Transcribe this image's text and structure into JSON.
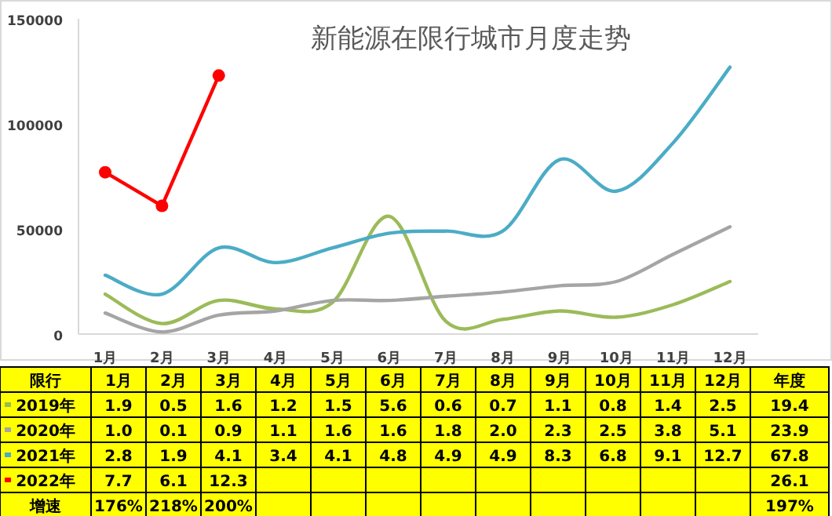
{
  "chart_data": {
    "type": "line",
    "title": "新能源在限行城市月度走势",
    "categories": [
      "1月",
      "2月",
      "3月",
      "4月",
      "5月",
      "6月",
      "7月",
      "8月",
      "9月",
      "10月",
      "11月",
      "12月"
    ],
    "ylim": [
      0,
      150000
    ],
    "yticks": [
      0,
      50000,
      100000,
      150000
    ],
    "grid": false,
    "legend": "bottom",
    "legend_title": "限行",
    "series": [
      {
        "name": "2019年",
        "color": "#9bbb59",
        "marker": "none",
        "values": [
          19000,
          5000,
          16000,
          12000,
          15000,
          56000,
          6000,
          7000,
          11000,
          8000,
          14000,
          25000
        ]
      },
      {
        "name": "2020年",
        "color": "#a5a5a5",
        "marker": "none",
        "values": [
          10000,
          1000,
          9000,
          11000,
          16000,
          16000,
          18000,
          20000,
          23000,
          25000,
          38000,
          51000
        ]
      },
      {
        "name": "2021年",
        "color": "#4bacc6",
        "marker": "none",
        "values": [
          28000,
          19000,
          41000,
          34000,
          41000,
          48000,
          49000,
          49000,
          83000,
          68000,
          91000,
          127000
        ]
      },
      {
        "name": "2022年",
        "color": "#ff0000",
        "marker": "circle",
        "values": [
          77000,
          61000,
          123000,
          null,
          null,
          null,
          null,
          null,
          null,
          null,
          null,
          null
        ]
      }
    ],
    "annotations": [
      "年度",
      "1.9",
      "0.5",
      "1.6",
      "1.2",
      "1.5",
      "5.6",
      "0.6",
      "0.7",
      "1.1",
      "0.8",
      "1.4",
      "2.5",
      "19.4",
      "1.0",
      "0.1",
      "0.9",
      "1.1",
      "1.6",
      "1.6",
      "1.8",
      "2.0",
      "2.3",
      "2.5",
      "3.8",
      "5.1",
      "23.9",
      "2.8",
      "1.9",
      "4.1",
      "3.4",
      "4.1",
      "4.8",
      "4.9",
      "4.9",
      "8.3",
      "6.8",
      "9.1",
      "12.7",
      "67.8",
      "7.7",
      "6.1",
      "12.3",
      "26.1",
      "增速",
      "176%",
      "218%",
      "200%",
      "197%"
    ]
  }
}
